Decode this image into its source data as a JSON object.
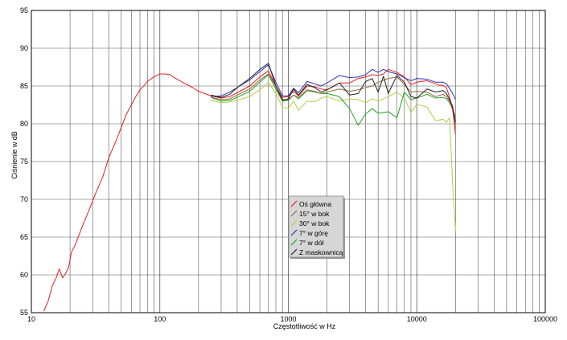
{
  "chart_data": {
    "type": "line",
    "xlabel": "Częstotliwość w Hz",
    "ylabel": "Ciśnienie w dB",
    "xscale": "log",
    "xlim": [
      10,
      100000
    ],
    "ylim": [
      55,
      95
    ],
    "xticks": [
      {
        "value": 10,
        "label": "10"
      },
      {
        "value": 100,
        "label": "100"
      },
      {
        "value": 1000,
        "label": "1000"
      },
      {
        "value": 10000,
        "label": "10000"
      },
      {
        "value": 100000,
        "label": "100000"
      }
    ],
    "yticks": [
      {
        "value": 55,
        "label": "55"
      },
      {
        "value": 60,
        "label": "60"
      },
      {
        "value": 65,
        "label": "65"
      },
      {
        "value": 70,
        "label": "70"
      },
      {
        "value": 75,
        "label": "75"
      },
      {
        "value": 80,
        "label": "80"
      },
      {
        "value": 85,
        "label": "85"
      },
      {
        "value": 90,
        "label": "90"
      },
      {
        "value": 95,
        "label": "95"
      }
    ],
    "grid": true,
    "legend_position": "center",
    "series": [
      {
        "name": "Oś główna",
        "color": "#e02020",
        "points": [
          [
            12.5,
            55.2
          ],
          [
            13.5,
            56.5
          ],
          [
            14.5,
            58.5
          ],
          [
            15.5,
            59.5
          ],
          [
            16.5,
            60.8
          ],
          [
            17.5,
            59.6
          ],
          [
            18.5,
            60.2
          ],
          [
            19.5,
            61.0
          ],
          [
            20.5,
            63.0
          ],
          [
            22,
            64.0
          ],
          [
            25,
            66.5
          ],
          [
            28,
            68.5
          ],
          [
            32,
            71.0
          ],
          [
            36,
            73.0
          ],
          [
            40,
            75.5
          ],
          [
            45,
            77.5
          ],
          [
            50,
            79.5
          ],
          [
            55,
            81.3
          ],
          [
            60,
            82.5
          ],
          [
            65,
            83.6
          ],
          [
            70,
            84.5
          ],
          [
            75,
            85.0
          ],
          [
            80,
            85.6
          ],
          [
            90,
            86.2
          ],
          [
            100,
            86.6
          ],
          [
            110,
            86.6
          ],
          [
            120,
            86.5
          ],
          [
            130,
            86.1
          ],
          [
            150,
            85.5
          ],
          [
            180,
            84.8
          ],
          [
            200,
            84.3
          ],
          [
            250,
            83.7
          ],
          [
            300,
            83.4
          ],
          [
            350,
            83.6
          ],
          [
            400,
            84.1
          ],
          [
            500,
            85.0
          ],
          [
            600,
            86.2
          ],
          [
            700,
            87.0
          ],
          [
            800,
            85.0
          ],
          [
            900,
            83.5
          ],
          [
            1000,
            83.6
          ],
          [
            1100,
            84.3
          ],
          [
            1200,
            83.7
          ],
          [
            1400,
            85.0
          ],
          [
            1600,
            84.9
          ],
          [
            1800,
            84.6
          ],
          [
            2000,
            84.5
          ],
          [
            2500,
            85.4
          ],
          [
            3000,
            85.4
          ],
          [
            3500,
            86.0
          ],
          [
            4000,
            86.2
          ],
          [
            4500,
            86.5
          ],
          [
            5000,
            86.4
          ],
          [
            5500,
            86.6
          ],
          [
            6000,
            87.2
          ],
          [
            7000,
            86.8
          ],
          [
            8000,
            86.2
          ],
          [
            9000,
            85.2
          ],
          [
            10000,
            85.5
          ],
          [
            12000,
            85.7
          ],
          [
            14000,
            85.3
          ],
          [
            15000,
            85.1
          ],
          [
            16000,
            85.1
          ],
          [
            17000,
            84.8
          ],
          [
            18000,
            83.5
          ],
          [
            19000,
            82.0
          ],
          [
            20000,
            78.6
          ]
        ]
      },
      {
        "name": "15° w bok",
        "color": "#9a6a3a",
        "points": [
          [
            250,
            83.5
          ],
          [
            300,
            83.2
          ],
          [
            350,
            83.3
          ],
          [
            400,
            83.8
          ],
          [
            500,
            84.6
          ],
          [
            600,
            85.8
          ],
          [
            700,
            86.6
          ],
          [
            800,
            85.0
          ],
          [
            900,
            83.2
          ],
          [
            1000,
            83.2
          ],
          [
            1100,
            83.8
          ],
          [
            1200,
            83.5
          ],
          [
            1400,
            84.5
          ],
          [
            1600,
            84.3
          ],
          [
            1800,
            84.0
          ],
          [
            2000,
            84.2
          ],
          [
            2500,
            84.6
          ],
          [
            3000,
            84.3
          ],
          [
            3500,
            84.5
          ],
          [
            4000,
            84.8
          ],
          [
            4500,
            85.0
          ],
          [
            5000,
            85.5
          ],
          [
            6000,
            86.0
          ],
          [
            7000,
            86.2
          ],
          [
            8000,
            85.2
          ],
          [
            9000,
            84.2
          ],
          [
            10000,
            84.3
          ],
          [
            12000,
            84.2
          ],
          [
            14000,
            83.6
          ],
          [
            16000,
            83.9
          ],
          [
            17000,
            83.6
          ],
          [
            18000,
            83.0
          ],
          [
            19000,
            81.8
          ],
          [
            20000,
            79.5
          ]
        ]
      },
      {
        "name": "30° w bok",
        "color": "#b0d040",
        "points": [
          [
            250,
            83.1
          ],
          [
            300,
            82.8
          ],
          [
            350,
            82.9
          ],
          [
            400,
            83.1
          ],
          [
            500,
            83.6
          ],
          [
            600,
            84.5
          ],
          [
            700,
            85.5
          ],
          [
            800,
            84.0
          ],
          [
            900,
            82.2
          ],
          [
            1000,
            82.0
          ],
          [
            1100,
            83.0
          ],
          [
            1200,
            81.8
          ],
          [
            1400,
            83.0
          ],
          [
            1600,
            82.9
          ],
          [
            1800,
            83.4
          ],
          [
            2000,
            83.6
          ],
          [
            2500,
            83.0
          ],
          [
            3000,
            83.3
          ],
          [
            3500,
            83.2
          ],
          [
            4000,
            82.8
          ],
          [
            4500,
            83.3
          ],
          [
            5000,
            83.0
          ],
          [
            6000,
            83.6
          ],
          [
            7000,
            84.2
          ],
          [
            8000,
            83.4
          ],
          [
            9000,
            81.5
          ],
          [
            10000,
            82.6
          ],
          [
            12000,
            82.2
          ],
          [
            14000,
            80.4
          ],
          [
            16000,
            80.6
          ],
          [
            17000,
            80.2
          ],
          [
            18000,
            80.8
          ],
          [
            19000,
            72.0
          ],
          [
            20000,
            65.8
          ]
        ]
      },
      {
        "name": "7° w górę",
        "color": "#3030b0",
        "points": [
          [
            250,
            83.6
          ],
          [
            300,
            83.7
          ],
          [
            350,
            84.2
          ],
          [
            400,
            84.8
          ],
          [
            500,
            85.8
          ],
          [
            600,
            86.9
          ],
          [
            700,
            87.8
          ],
          [
            800,
            85.5
          ],
          [
            900,
            83.7
          ],
          [
            1000,
            83.7
          ],
          [
            1100,
            84.7
          ],
          [
            1200,
            84.1
          ],
          [
            1400,
            85.6
          ],
          [
            1600,
            85.3
          ],
          [
            1800,
            85.0
          ],
          [
            2000,
            85.4
          ],
          [
            2500,
            86.4
          ],
          [
            3000,
            86.1
          ],
          [
            3500,
            86.2
          ],
          [
            4000,
            86.5
          ],
          [
            4500,
            87.2
          ],
          [
            5000,
            86.8
          ],
          [
            5500,
            87.2
          ],
          [
            6000,
            86.9
          ],
          [
            7000,
            86.6
          ],
          [
            8000,
            86.1
          ],
          [
            9000,
            85.7
          ],
          [
            10000,
            86.0
          ],
          [
            12000,
            85.9
          ],
          [
            14000,
            85.5
          ],
          [
            16000,
            85.5
          ],
          [
            17000,
            85.3
          ],
          [
            18000,
            84.7
          ],
          [
            19000,
            84.0
          ],
          [
            20000,
            83.2
          ]
        ]
      },
      {
        "name": "7° w dół",
        "color": "#20a020",
        "points": [
          [
            250,
            83.5
          ],
          [
            300,
            83.0
          ],
          [
            350,
            83.1
          ],
          [
            400,
            83.5
          ],
          [
            500,
            84.3
          ],
          [
            600,
            85.5
          ],
          [
            700,
            86.5
          ],
          [
            800,
            84.6
          ],
          [
            900,
            83.0
          ],
          [
            1000,
            83.1
          ],
          [
            1100,
            83.8
          ],
          [
            1200,
            83.3
          ],
          [
            1400,
            84.4
          ],
          [
            1600,
            84.2
          ],
          [
            1800,
            84.0
          ],
          [
            2000,
            84.0
          ],
          [
            2500,
            83.6
          ],
          [
            3000,
            82.0
          ],
          [
            3500,
            79.8
          ],
          [
            4000,
            81.3
          ],
          [
            4500,
            82.0
          ],
          [
            5000,
            81.4
          ],
          [
            6000,
            81.6
          ],
          [
            7000,
            80.8
          ],
          [
            8000,
            84.2
          ],
          [
            9000,
            83.2
          ],
          [
            10000,
            83.4
          ],
          [
            12000,
            83.9
          ],
          [
            14000,
            83.4
          ],
          [
            16000,
            83.5
          ],
          [
            17000,
            83.3
          ],
          [
            18000,
            82.8
          ],
          [
            19000,
            82.0
          ],
          [
            20000,
            80.8
          ]
        ]
      },
      {
        "name": "Z maskownicą",
        "color": "#222222",
        "points": [
          [
            250,
            83.8
          ],
          [
            300,
            83.5
          ],
          [
            350,
            83.9
          ],
          [
            400,
            84.8
          ],
          [
            500,
            86.0
          ],
          [
            600,
            87.2
          ],
          [
            700,
            88.0
          ],
          [
            800,
            85.0
          ],
          [
            900,
            83.1
          ],
          [
            1000,
            83.3
          ],
          [
            1100,
            84.6
          ],
          [
            1200,
            83.8
          ],
          [
            1400,
            85.2
          ],
          [
            1600,
            84.8
          ],
          [
            1800,
            84.2
          ],
          [
            2000,
            84.5
          ],
          [
            2500,
            85.4
          ],
          [
            3000,
            83.8
          ],
          [
            3500,
            84.0
          ],
          [
            4000,
            85.6
          ],
          [
            4500,
            86.0
          ],
          [
            5000,
            84.2
          ],
          [
            5500,
            86.3
          ],
          [
            6000,
            84.0
          ],
          [
            7000,
            86.4
          ],
          [
            8000,
            85.5
          ],
          [
            9000,
            83.6
          ],
          [
            10000,
            83.4
          ],
          [
            12000,
            84.6
          ],
          [
            14000,
            84.2
          ],
          [
            16000,
            84.4
          ],
          [
            17000,
            84.0
          ],
          [
            18000,
            83.2
          ],
          [
            19000,
            82.3
          ],
          [
            20000,
            80.2
          ]
        ]
      }
    ]
  }
}
